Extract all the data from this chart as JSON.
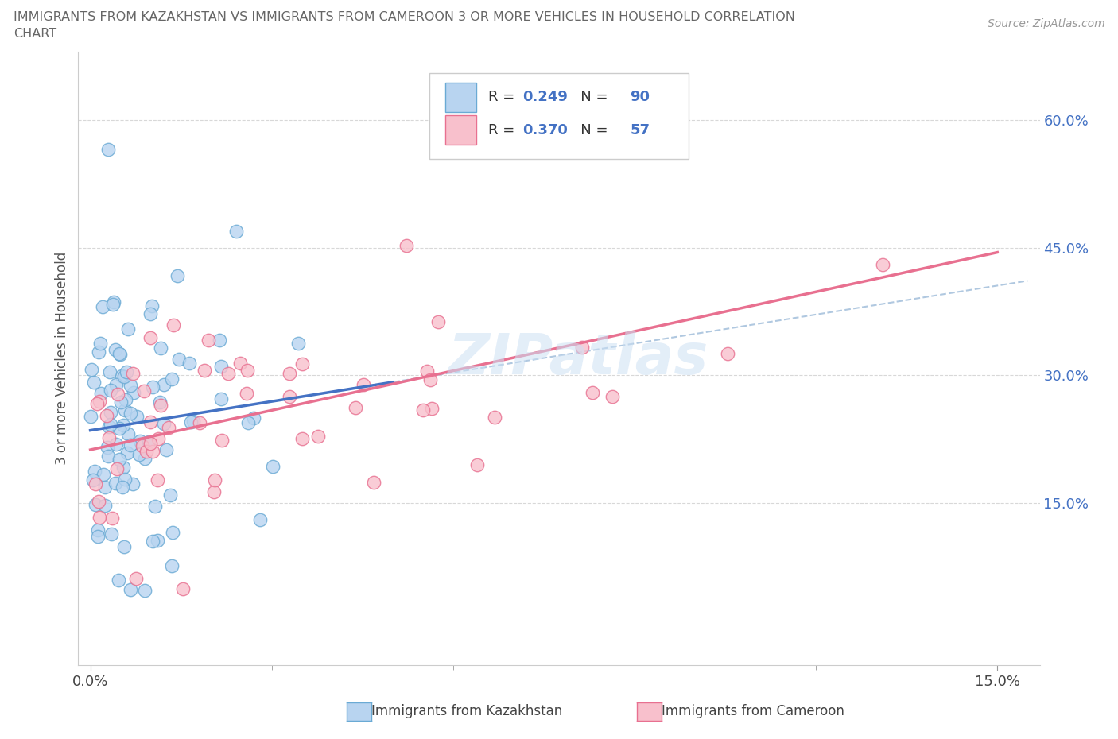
{
  "title_line1": "IMMIGRANTS FROM KAZAKHSTAN VS IMMIGRANTS FROM CAMEROON 3 OR MORE VEHICLES IN HOUSEHOLD CORRELATION",
  "title_line2": "CHART",
  "source": "Source: ZipAtlas.com",
  "ylabel": "3 or more Vehicles in Household",
  "xlabel_kaz": "Immigrants from Kazakhstan",
  "xlabel_cam": "Immigrants from Cameroon",
  "R_kaz": 0.249,
  "N_kaz": 90,
  "R_cam": 0.37,
  "N_cam": 57,
  "color_kaz_fill": "#b8d4f0",
  "color_kaz_edge": "#6aaad4",
  "color_cam_fill": "#f8c0cc",
  "color_cam_edge": "#e87090",
  "color_trendline_kaz": "#4472c4",
  "color_trendline_cam": "#e87090",
  "color_dashed": "#b0c8e0",
  "color_grid": "#d8d8d8",
  "color_ytick": "#4472c4",
  "watermark": "ZIPatlas",
  "xlim_min": -0.002,
  "xlim_max": 0.157,
  "ylim_min": -0.04,
  "ylim_max": 0.68,
  "ytick_positions": [
    0.15,
    0.3,
    0.45,
    0.6
  ],
  "ytick_labels": [
    "15.0%",
    "30.0%",
    "45.0%",
    "60.0%"
  ],
  "xtick_positions": [
    0.0,
    0.15
  ],
  "xtick_labels": [
    "0.0%",
    "15.0%"
  ]
}
